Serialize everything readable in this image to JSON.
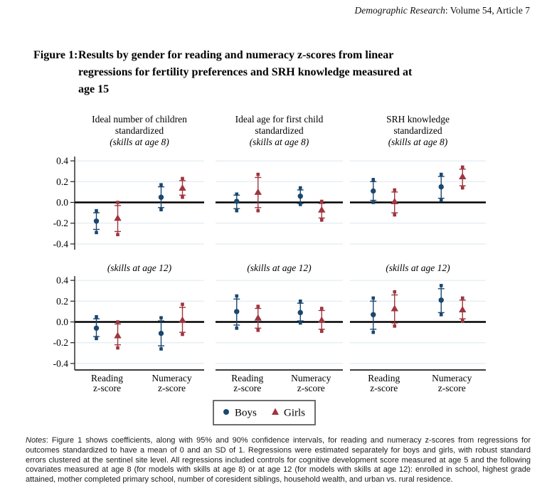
{
  "header": {
    "journal": "Demographic Research",
    "rest": ": Volume 54, Article 7"
  },
  "figure": {
    "label": "Figure 1:",
    "title_lines": [
      "Results by gender for reading and numeracy z-scores from linear",
      "regressions for fertility preferences and SRH knowledge measured at",
      "age 15"
    ]
  },
  "chart_data": {
    "type": "scatter",
    "subtype": "coefficient-plot-with-95-and-90-CI",
    "grid": true,
    "ylim": [
      -0.5,
      0.5
    ],
    "ytick_values": [
      0.4,
      0.2,
      0,
      -0.2,
      -0.4
    ],
    "ytick_labels": [
      "0.4",
      "0.2",
      "0.0",
      "-0.2",
      "-0.4"
    ],
    "categories": [
      [
        "Reading",
        "z-score"
      ],
      [
        "Numeracy",
        "z-score"
      ]
    ],
    "legend": {
      "position": "bottom-center",
      "entries": [
        {
          "label": "Boys",
          "marker": "circle",
          "color": "#1a476f"
        },
        {
          "label": "Girls",
          "marker": "triangle",
          "color": "#9e353f"
        }
      ]
    },
    "panels": [
      {
        "row": 0,
        "col": 0,
        "title_lines": [
          "Ideal number of children",
          "standardized"
        ],
        "subtitle": "(skills at age 8)",
        "points": [
          {
            "series": "Boys",
            "category": "Reading z-score",
            "est": -0.18,
            "ci95": [
              -0.29,
              -0.08
            ],
            "ci90": [
              -0.26,
              -0.1
            ]
          },
          {
            "series": "Girls",
            "category": "Reading z-score",
            "est": -0.15,
            "ci95": [
              -0.31,
              0.0
            ],
            "ci90": [
              -0.28,
              -0.03
            ]
          },
          {
            "series": "Boys",
            "category": "Numeracy z-score",
            "est": 0.05,
            "ci95": [
              -0.07,
              0.17
            ],
            "ci90": [
              -0.05,
              0.15
            ]
          },
          {
            "series": "Girls",
            "category": "Numeracy z-score",
            "est": 0.14,
            "ci95": [
              0.05,
              0.23
            ],
            "ci90": [
              0.07,
              0.21
            ]
          }
        ]
      },
      {
        "row": 0,
        "col": 1,
        "title_lines": [
          "Ideal age for first child",
          "standardized"
        ],
        "subtitle": "(skills at age 8)",
        "points": [
          {
            "series": "Boys",
            "category": "Reading z-score",
            "est": 0.01,
            "ci95": [
              -0.08,
              0.08
            ],
            "ci90": [
              -0.06,
              0.07
            ]
          },
          {
            "series": "Girls",
            "category": "Reading z-score",
            "est": 0.1,
            "ci95": [
              -0.08,
              0.27
            ],
            "ci90": [
              -0.05,
              0.24
            ]
          },
          {
            "series": "Boys",
            "category": "Numeracy z-score",
            "est": 0.06,
            "ci95": [
              -0.02,
              0.14
            ],
            "ci90": [
              -0.01,
              0.12
            ]
          },
          {
            "series": "Girls",
            "category": "Numeracy z-score",
            "est": -0.07,
            "ci95": [
              -0.17,
              0.01
            ],
            "ci90": [
              -0.15,
              -0.01
            ]
          }
        ]
      },
      {
        "row": 0,
        "col": 2,
        "title_lines": [
          "SRH knowledge",
          "standardized"
        ],
        "subtitle": "(skills at age 8)",
        "points": [
          {
            "series": "Boys",
            "category": "Reading z-score",
            "est": 0.11,
            "ci95": [
              0.0,
              0.22
            ],
            "ci90": [
              0.02,
              0.2
            ]
          },
          {
            "series": "Girls",
            "category": "Reading z-score",
            "est": 0.01,
            "ci95": [
              -0.12,
              0.12
            ],
            "ci90": [
              -0.1,
              0.1
            ]
          },
          {
            "series": "Boys",
            "category": "Numeracy z-score",
            "est": 0.15,
            "ci95": [
              0.02,
              0.27
            ],
            "ci90": [
              0.04,
              0.25
            ]
          },
          {
            "series": "Girls",
            "category": "Numeracy z-score",
            "est": 0.25,
            "ci95": [
              0.14,
              0.34
            ],
            "ci90": [
              0.16,
              0.32
            ]
          }
        ]
      },
      {
        "row": 1,
        "col": 0,
        "title_lines": [],
        "subtitle": "(skills at age 12)",
        "points": [
          {
            "series": "Boys",
            "category": "Reading z-score",
            "est": -0.06,
            "ci95": [
              -0.16,
              0.05
            ],
            "ci90": [
              -0.14,
              0.03
            ]
          },
          {
            "series": "Girls",
            "category": "Reading z-score",
            "est": -0.13,
            "ci95": [
              -0.25,
              0.0
            ],
            "ci90": [
              -0.22,
              -0.02
            ]
          },
          {
            "series": "Boys",
            "category": "Numeracy z-score",
            "est": -0.11,
            "ci95": [
              -0.26,
              0.04
            ],
            "ci90": [
              -0.23,
              0.01
            ]
          },
          {
            "series": "Girls",
            "category": "Numeracy z-score",
            "est": 0.02,
            "ci95": [
              -0.12,
              0.17
            ],
            "ci90": [
              -0.1,
              0.14
            ]
          }
        ]
      },
      {
        "row": 1,
        "col": 1,
        "title_lines": [],
        "subtitle": "(skills at age 12)",
        "points": [
          {
            "series": "Boys",
            "category": "Reading z-score",
            "est": 0.1,
            "ci95": [
              -0.06,
              0.25
            ],
            "ci90": [
              -0.03,
              0.22
            ]
          },
          {
            "series": "Girls",
            "category": "Reading z-score",
            "est": 0.04,
            "ci95": [
              -0.08,
              0.15
            ],
            "ci90": [
              -0.06,
              0.13
            ]
          },
          {
            "series": "Boys",
            "category": "Numeracy z-score",
            "est": 0.09,
            "ci95": [
              -0.01,
              0.2
            ],
            "ci90": [
              0.01,
              0.18
            ]
          },
          {
            "series": "Girls",
            "category": "Numeracy z-score",
            "est": 0.02,
            "ci95": [
              -0.09,
              0.13
            ],
            "ci90": [
              -0.07,
              0.11
            ]
          }
        ]
      },
      {
        "row": 1,
        "col": 2,
        "title_lines": [],
        "subtitle": "(skills at age 12)",
        "points": [
          {
            "series": "Boys",
            "category": "Reading z-score",
            "est": 0.07,
            "ci95": [
              -0.1,
              0.23
            ],
            "ci90": [
              -0.07,
              0.2
            ]
          },
          {
            "series": "Girls",
            "category": "Reading z-score",
            "est": 0.13,
            "ci95": [
              -0.04,
              0.29
            ],
            "ci90": [
              -0.01,
              0.26
            ]
          },
          {
            "series": "Boys",
            "category": "Numeracy z-score",
            "est": 0.21,
            "ci95": [
              0.07,
              0.35
            ],
            "ci90": [
              0.09,
              0.32
            ]
          },
          {
            "series": "Girls",
            "category": "Numeracy z-score",
            "est": 0.12,
            "ci95": [
              0.01,
              0.23
            ],
            "ci90": [
              0.03,
              0.21
            ]
          }
        ]
      }
    ]
  },
  "notes": {
    "label": "Notes",
    "body": ": Figure 1 shows coefficients, along with 95% and 90% confidence intervals, for reading and numeracy z-scores from regressions for outcomes standardized to have a mean of 0 and an SD of 1. Regressions were estimated separately for boys and girls, with robust standard errors clustered at the sentinel site level. All regressions included controls for cognitive development score measured at age 5 and the following covariates measured at age 8 (for models with skills at age 8) or at age 12 (for models with skills at age 12): enrolled in school, highest grade attained, mother completed primary school, number of coresident siblings, household wealth, and urban vs. rural residence."
  }
}
